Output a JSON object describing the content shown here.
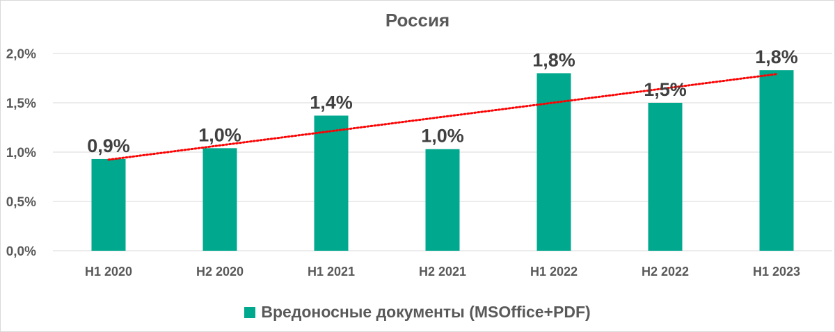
{
  "chart_data": {
    "type": "bar",
    "title": "Россия",
    "categories": [
      "H1 2020",
      "H2 2020",
      "H1 2021",
      "H2 2021",
      "H1 2022",
      "H2 2022",
      "H1 2023"
    ],
    "values": [
      0.93,
      1.04,
      1.37,
      1.03,
      1.8,
      1.5,
      1.83
    ],
    "data_labels": [
      "0,9%",
      "1,0%",
      "1,4%",
      "1,0%",
      "1,8%",
      "1,5%",
      "1,8%"
    ],
    "series": [
      {
        "name": "Вредоносные документы (MSOffice+PDF)",
        "values": [
          0.93,
          1.04,
          1.37,
          1.03,
          1.8,
          1.5,
          1.83
        ]
      }
    ],
    "ylim": [
      0,
      2.0
    ],
    "yticks": [
      0,
      0.5,
      1.0,
      1.5,
      2.0
    ],
    "ytick_labels": [
      "0,0%",
      "0,5%",
      "1,0%",
      "1,5%",
      "2,0%"
    ],
    "xlabel": "",
    "ylabel": "",
    "grid": true,
    "trendline": {
      "type": "linear",
      "color": "#ff0000",
      "style": "dotted"
    },
    "legend_position": "bottom",
    "colors": {
      "bar": "#00a88e",
      "grid": "#d9d9d9",
      "text": "#595959"
    }
  }
}
